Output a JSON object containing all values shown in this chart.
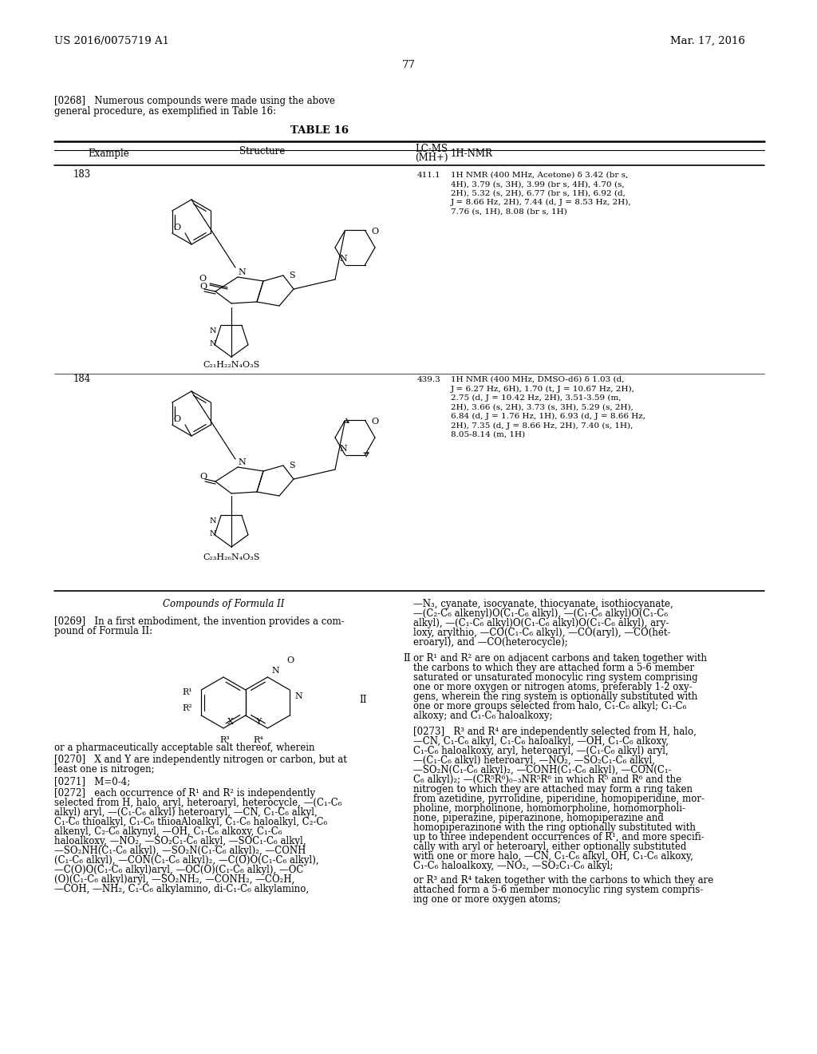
{
  "bg_color": "#ffffff",
  "header_left": "US 2016/0075719 A1",
  "header_right": "Mar. 17, 2016",
  "page_number": "77",
  "nmr_183": "1H NMR (400 MHz, Acetone) δ 3.42 (br s,\n4H), 3.79 (s, 3H), 3.99 (br s, 4H), 4.70 (s,\n2H), 5.32 (s, 2H), 6.77 (br s, 1H), 6.92 (d,\nJ = 8.66 Hz, 2H), 7.44 (d, J = 8.53 Hz, 2H),\n7.76 (s, 1H), 8.08 (br s, 1H)",
  "nmr_184": "1H NMR (400 MHz, DMSO-d6) δ 1.03 (d,\nJ = 6.27 Hz, 6H), 1.70 (t, J = 10.67 Hz, 2H),\n2.75 (d, J = 10.42 Hz, 2H), 3.51-3.59 (m,\n2H), 3.66 (s, 2H), 3.73 (s, 3H), 5.29 (s, 2H),\n6.84 (d, J = 1.76 Hz, 1H), 6.93 (d, J = 8.66 Hz,\n2H), 7.35 (d, J = 8.66 Hz, 2H), 7.40 (s, 1H),\n8.05-8.14 (m, 1H)"
}
